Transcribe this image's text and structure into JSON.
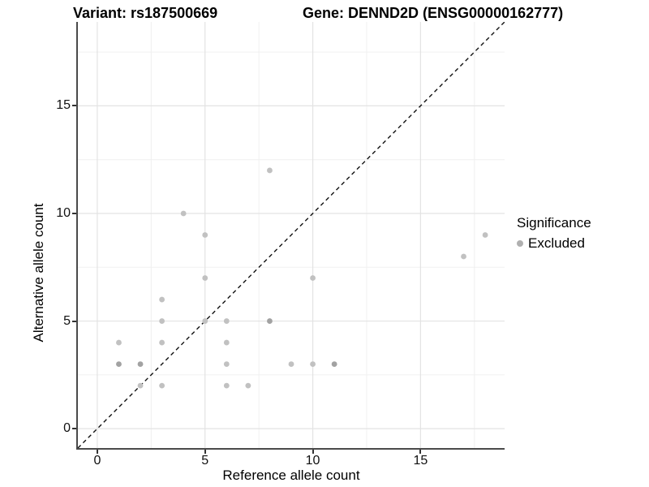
{
  "header": {
    "title_left": "Variant: rs187500669",
    "title_right": "Gene: DENND2D (ENSG00000162777)"
  },
  "chart_data": {
    "type": "scatter",
    "title": "Variant: rs187500669 / Gene: DENND2D (ENSG00000162777)",
    "xlabel": "Reference allele count",
    "ylabel": "Alternative allele count",
    "xlim": [
      -0.9,
      18.9
    ],
    "ylim": [
      -0.9,
      18.9
    ],
    "x_ticks": [
      0,
      5,
      10,
      15
    ],
    "y_ticks": [
      0,
      5,
      10,
      15
    ],
    "minor_gridlines": [
      2.5,
      7.5,
      12.5,
      17.5
    ],
    "grid": true,
    "legend_position": "right",
    "identity_line": {
      "style": "dashed",
      "from": [
        -0.9,
        -0.9
      ],
      "to": [
        18.9,
        18.9
      ],
      "color": "#111111"
    },
    "point_colors": {
      "light": "#c1c1c1",
      "dark": "#a2a2a2"
    },
    "grid_colors": {
      "major": "#e3e3e3",
      "minor": "#f0f0f0"
    },
    "axis_line_color": "#4a4a4a",
    "series_name": "Excluded",
    "points": [
      {
        "x": 1,
        "y": 4,
        "shade": "light"
      },
      {
        "x": 1,
        "y": 3,
        "shade": "dark"
      },
      {
        "x": 2,
        "y": 3,
        "shade": "dark"
      },
      {
        "x": 2,
        "y": 2,
        "shade": "light"
      },
      {
        "x": 3,
        "y": 6,
        "shade": "light"
      },
      {
        "x": 3,
        "y": 5,
        "shade": "light"
      },
      {
        "x": 3,
        "y": 4,
        "shade": "light"
      },
      {
        "x": 3,
        "y": 2,
        "shade": "light"
      },
      {
        "x": 4,
        "y": 10,
        "shade": "light"
      },
      {
        "x": 5,
        "y": 9,
        "shade": "light"
      },
      {
        "x": 5,
        "y": 7,
        "shade": "light"
      },
      {
        "x": 5,
        "y": 5,
        "shade": "light"
      },
      {
        "x": 6,
        "y": 5,
        "shade": "light"
      },
      {
        "x": 6,
        "y": 4,
        "shade": "light"
      },
      {
        "x": 6,
        "y": 3,
        "shade": "light"
      },
      {
        "x": 6,
        "y": 2,
        "shade": "light"
      },
      {
        "x": 7,
        "y": 2,
        "shade": "light"
      },
      {
        "x": 8,
        "y": 12,
        "shade": "light"
      },
      {
        "x": 8,
        "y": 5,
        "shade": "dark"
      },
      {
        "x": 9,
        "y": 3,
        "shade": "light"
      },
      {
        "x": 10,
        "y": 7,
        "shade": "light"
      },
      {
        "x": 10,
        "y": 3,
        "shade": "light"
      },
      {
        "x": 11,
        "y": 3,
        "shade": "dark"
      },
      {
        "x": 17,
        "y": 8,
        "shade": "light"
      },
      {
        "x": 18,
        "y": 9,
        "shade": "light"
      }
    ],
    "legend": {
      "title": "Significance",
      "items": [
        {
          "label": "Excluded",
          "color": "#b0b0b0"
        }
      ]
    }
  }
}
